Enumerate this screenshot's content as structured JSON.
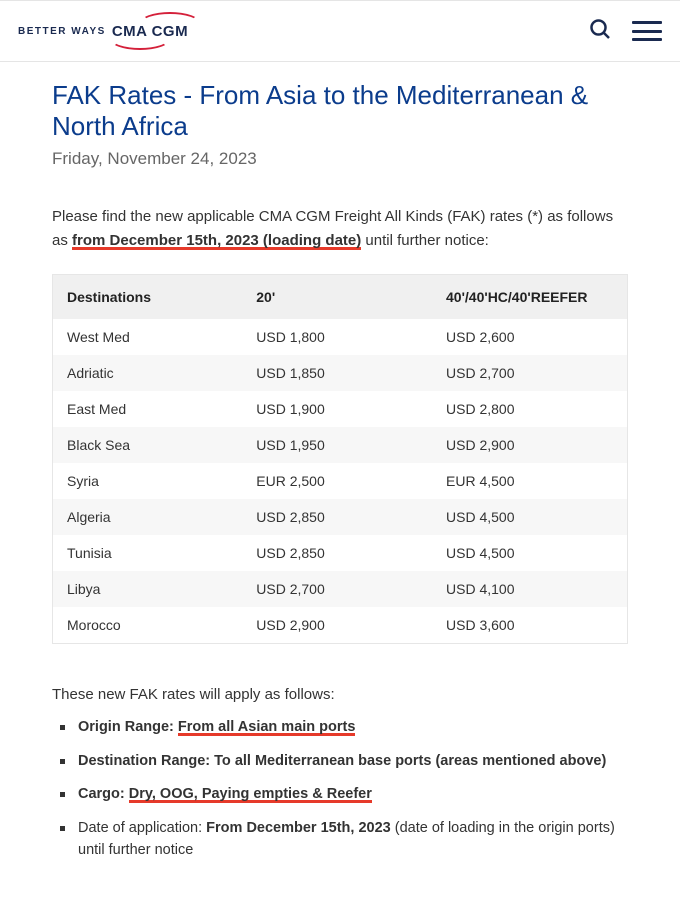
{
  "topbar": {
    "tagline": "BETTER WAYS",
    "logo_text": "CMA CGM"
  },
  "page": {
    "title": "FAK Rates - From Asia to the Mediterranean & North Africa",
    "date": "Friday, November 24, 2023",
    "intro_pre": "Please find the new applicable CMA CGM Freight All Kinds (FAK) rates (*) as follows as ",
    "intro_underlined": "from December 15th, 2023 (loading date)",
    "intro_post": " until further notice:"
  },
  "table": {
    "columns": [
      "Destinations",
      "20'",
      "40'/40'HC/40'REEFER"
    ],
    "col_widths_pct": [
      33,
      33,
      34
    ],
    "header_bg": "#f0f0f0",
    "row_alt_bg": "#f7f7f7",
    "border_color": "#e6e6e6",
    "rows": [
      [
        "West Med",
        "USD 1,800",
        "USD 2,600"
      ],
      [
        "Adriatic",
        "USD 1,850",
        "USD 2,700"
      ],
      [
        "East Med",
        "USD 1,900",
        "USD 2,800"
      ],
      [
        "Black Sea",
        "USD 1,950",
        "USD 2,900"
      ],
      [
        "Syria",
        "EUR 2,500",
        "EUR 4,500"
      ],
      [
        "Algeria",
        "USD 2,850",
        "USD 4,500"
      ],
      [
        "Tunisia",
        "USD 2,850",
        "USD 4,500"
      ],
      [
        "Libya",
        "USD 2,700",
        "USD 4,100"
      ],
      [
        "Morocco",
        "USD 2,900",
        "USD 3,600"
      ]
    ]
  },
  "apply": {
    "lead": "These new FAK rates will apply as follows:",
    "items": [
      {
        "label": "Origin Range:",
        "strong_rest": " ",
        "underlined": "From all Asian main ports",
        "plain": ""
      },
      {
        "label": "Destination Range: To all Mediterranean base ports (areas mentioned above)",
        "strong_rest": "",
        "underlined": "",
        "plain": ""
      },
      {
        "label": "Cargo:",
        "strong_rest": " ",
        "underlined": "Dry, OOG, Paying empties & Reefer",
        "plain": ""
      },
      {
        "label": "",
        "strong_rest": "",
        "underlined": "",
        "plain_pre": "Date of application: ",
        "strong_mid": "From December 15th, 2023",
        "plain_post": " (date of loading in the origin ports) until further notice"
      }
    ]
  },
  "colors": {
    "title": "#0b3c8c",
    "subtitle": "#666666",
    "text": "#333333",
    "underline": "#e63a2a",
    "brand_navy": "#1a2a50",
    "brand_red": "#d4203a"
  }
}
